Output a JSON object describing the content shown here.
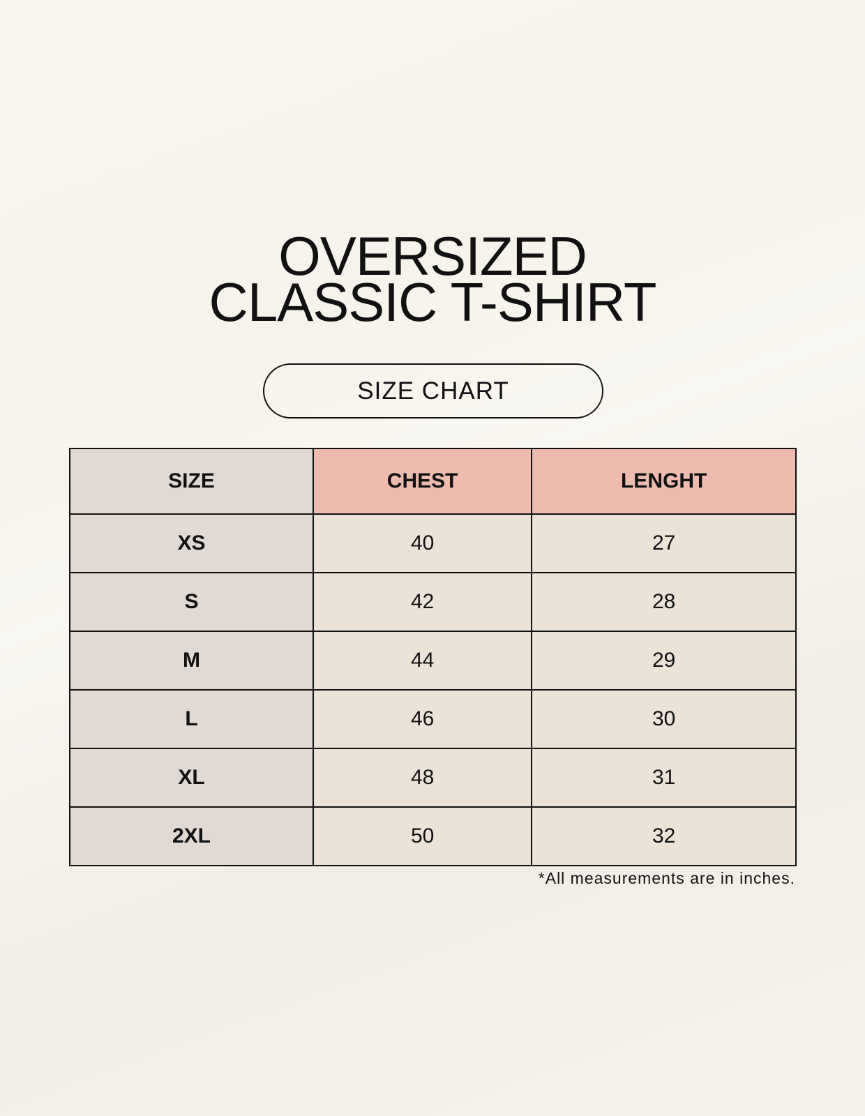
{
  "title": {
    "line1": "OVERSIZED",
    "line2": "CLASSIC T-SHIRT"
  },
  "badge": "SIZE CHART",
  "table": {
    "headers": [
      "SIZE",
      "CHEST",
      "LENGHT"
    ],
    "rows": [
      [
        "XS",
        "40",
        "27"
      ],
      [
        "S",
        "42",
        "28"
      ],
      [
        "M",
        "44",
        "29"
      ],
      [
        "L",
        "46",
        "30"
      ],
      [
        "XL",
        "48",
        "31"
      ],
      [
        "2XL",
        "50",
        "32"
      ]
    ]
  },
  "footnote": "*All measurements are in inches.",
  "colors": {
    "size_column": "#e1d9d3",
    "header_accent": "#eebcaf",
    "value_cells": "#ebe3d8"
  }
}
